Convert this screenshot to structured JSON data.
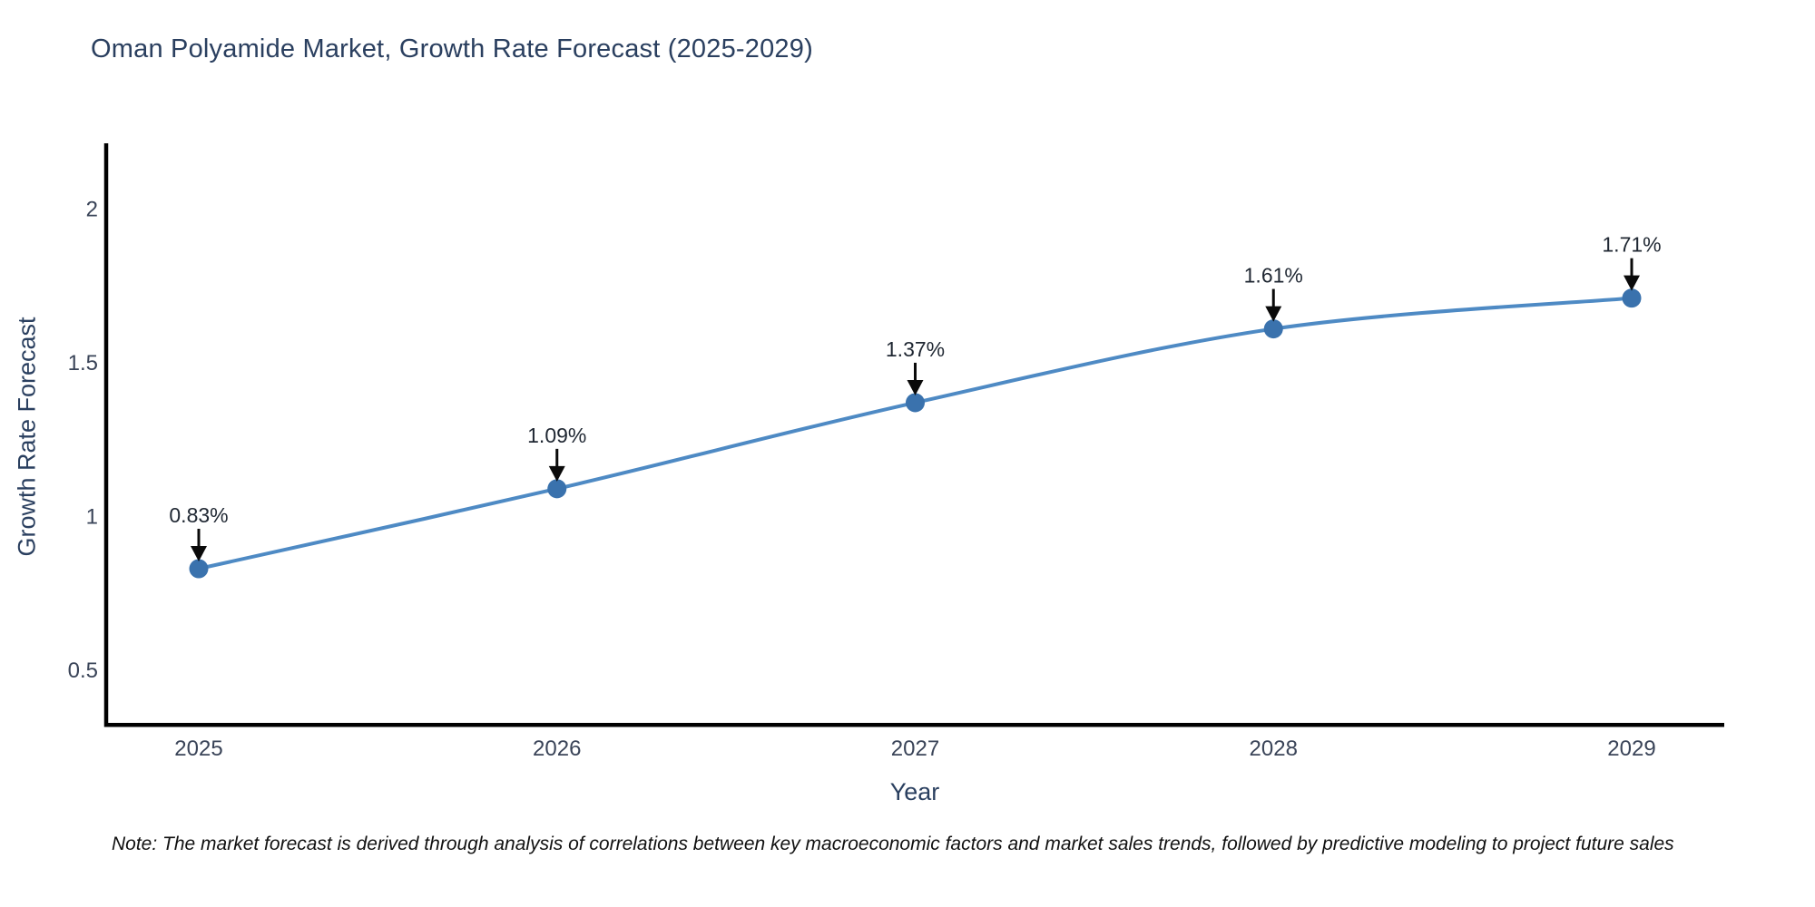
{
  "title": "Oman Polyamide Market, Growth Rate Forecast (2025-2029)",
  "note": "Note: The market forecast is derived through analysis of correlations between key macroeconomic factors and market sales trends, followed by predictive modeling to project future sales",
  "chart_data": {
    "type": "line",
    "title": "Oman Polyamide Market, Growth Rate Forecast (2025-2029)",
    "xlabel": "Year",
    "ylabel": "Growth Rate Forecast",
    "x": [
      2025,
      2026,
      2027,
      2028,
      2029
    ],
    "values": [
      0.83,
      1.09,
      1.37,
      1.61,
      1.71
    ],
    "point_labels": [
      "0.83%",
      "1.09%",
      "1.37%",
      "1.61%",
      "1.71%"
    ],
    "xtick_labels": [
      "2025",
      "2026",
      "2027",
      "2028",
      "2029"
    ],
    "yticks": [
      0.5,
      1,
      1.5,
      2
    ],
    "ytick_labels": [
      "0.5",
      "1",
      "1.5",
      "2"
    ],
    "xlim": [
      2024.74,
      2029.26
    ],
    "ylim": [
      0.32,
      2.21
    ],
    "grid": false,
    "legend": "none",
    "line_shape": "spline",
    "line_color": "#4e8ac4",
    "marker_color": "#3a72ad",
    "annotation_arrow_color": "#0a0a0a",
    "annotation_text_color": "#1f2732"
  },
  "colors": {
    "title_text": "#2a3f5f",
    "axis_label_text": "#2a3f5f",
    "tick_text": "#3a4458",
    "axis_line": "#000000",
    "background": "#ffffff"
  }
}
